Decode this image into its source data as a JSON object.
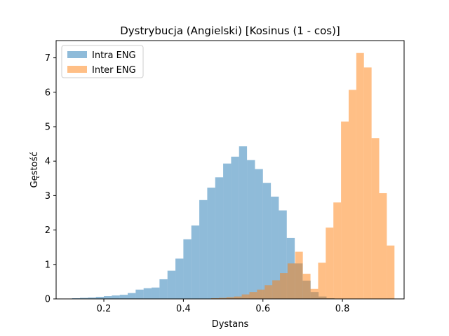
{
  "chart_data": {
    "type": "bar",
    "title": "Dystrybucja (Angielski) [Kosinus (1 - cos)]",
    "xlabel": "Dystans",
    "ylabel": "Gęstość",
    "xlim": [
      0.08,
      0.955
    ],
    "ylim": [
      0,
      7.5
    ],
    "xticks": [
      0.2,
      0.4,
      0.6,
      0.8
    ],
    "xtick_labels": [
      "0.2",
      "0.4",
      "0.6",
      "0.8"
    ],
    "yticks": [
      0,
      1,
      2,
      3,
      4,
      5,
      6,
      7
    ],
    "ytick_labels": [
      "0",
      "1",
      "2",
      "3",
      "4",
      "5",
      "6",
      "7"
    ],
    "legend": "top-left",
    "grid": false,
    "series": [
      {
        "name": "Intra ENG",
        "color": "#1f77b4",
        "alpha": 0.5,
        "bin_width": 0.02,
        "bin_starts": [
          0.12,
          0.14,
          0.16,
          0.18,
          0.2,
          0.22,
          0.24,
          0.26,
          0.28,
          0.3,
          0.32,
          0.34,
          0.36,
          0.38,
          0.4,
          0.42,
          0.44,
          0.46,
          0.48,
          0.5,
          0.52,
          0.54,
          0.56,
          0.58,
          0.6,
          0.62,
          0.64,
          0.66,
          0.68,
          0.7,
          0.72,
          0.74,
          0.76
        ],
        "values": [
          0.02,
          0.03,
          0.04,
          0.06,
          0.08,
          0.1,
          0.12,
          0.17,
          0.27,
          0.31,
          0.33,
          0.57,
          0.82,
          1.17,
          1.73,
          2.13,
          2.87,
          3.23,
          3.53,
          3.93,
          4.13,
          4.43,
          4.03,
          3.77,
          3.37,
          2.97,
          2.57,
          1.77,
          1.03,
          0.53,
          0.2,
          0.07,
          0.02
        ]
      },
      {
        "name": "Inter ENG",
        "color": "#ff7f0e",
        "alpha": 0.5,
        "bin_width": 0.0192,
        "bin_starts": [
          0.47,
          0.4892,
          0.5084,
          0.5276,
          0.5468,
          0.566,
          0.5852,
          0.6044,
          0.6236,
          0.6428,
          0.662,
          0.6812,
          0.7004,
          0.7196,
          0.7388,
          0.758,
          0.7772,
          0.7964,
          0.8156,
          0.8348,
          0.854,
          0.8732,
          0.8924,
          0.9116
        ],
        "values": [
          0.02,
          0.03,
          0.05,
          0.07,
          0.13,
          0.2,
          0.27,
          0.4,
          0.54,
          0.75,
          1.03,
          1.37,
          0.73,
          0.29,
          1.05,
          2.07,
          2.8,
          5.15,
          6.07,
          7.14,
          6.72,
          4.67,
          3.07,
          1.55
        ]
      }
    ]
  }
}
